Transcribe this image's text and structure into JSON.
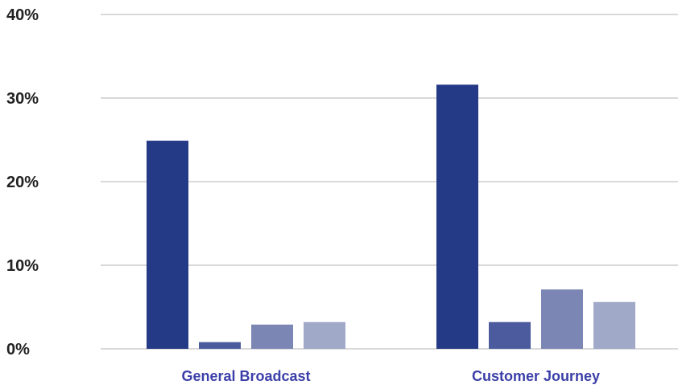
{
  "chart_data": {
    "type": "bar",
    "title": "",
    "xlabel": "",
    "ylabel": "",
    "ylim": [
      0,
      40
    ],
    "y_ticks": [
      "0%",
      "10%",
      "20%",
      "30%",
      "40%"
    ],
    "y_tick_values": [
      0,
      10,
      20,
      30,
      40
    ],
    "grid": true,
    "legend": "none",
    "categories": [
      "General Broadcast",
      "Customer Journey"
    ],
    "series": [
      {
        "values": [
          24.9,
          31.6
        ],
        "color": "#253a86"
      },
      {
        "values": [
          0.8,
          3.2
        ],
        "color": "#4b5b9e"
      },
      {
        "values": [
          2.9,
          7.1
        ],
        "color": "#7b86b5"
      },
      {
        "values": [
          3.2,
          5.6
        ],
        "color": "#a1a9c9"
      }
    ],
    "gridline_color": "#d9d9d9",
    "category_label_color": "#3b3fa8"
  }
}
